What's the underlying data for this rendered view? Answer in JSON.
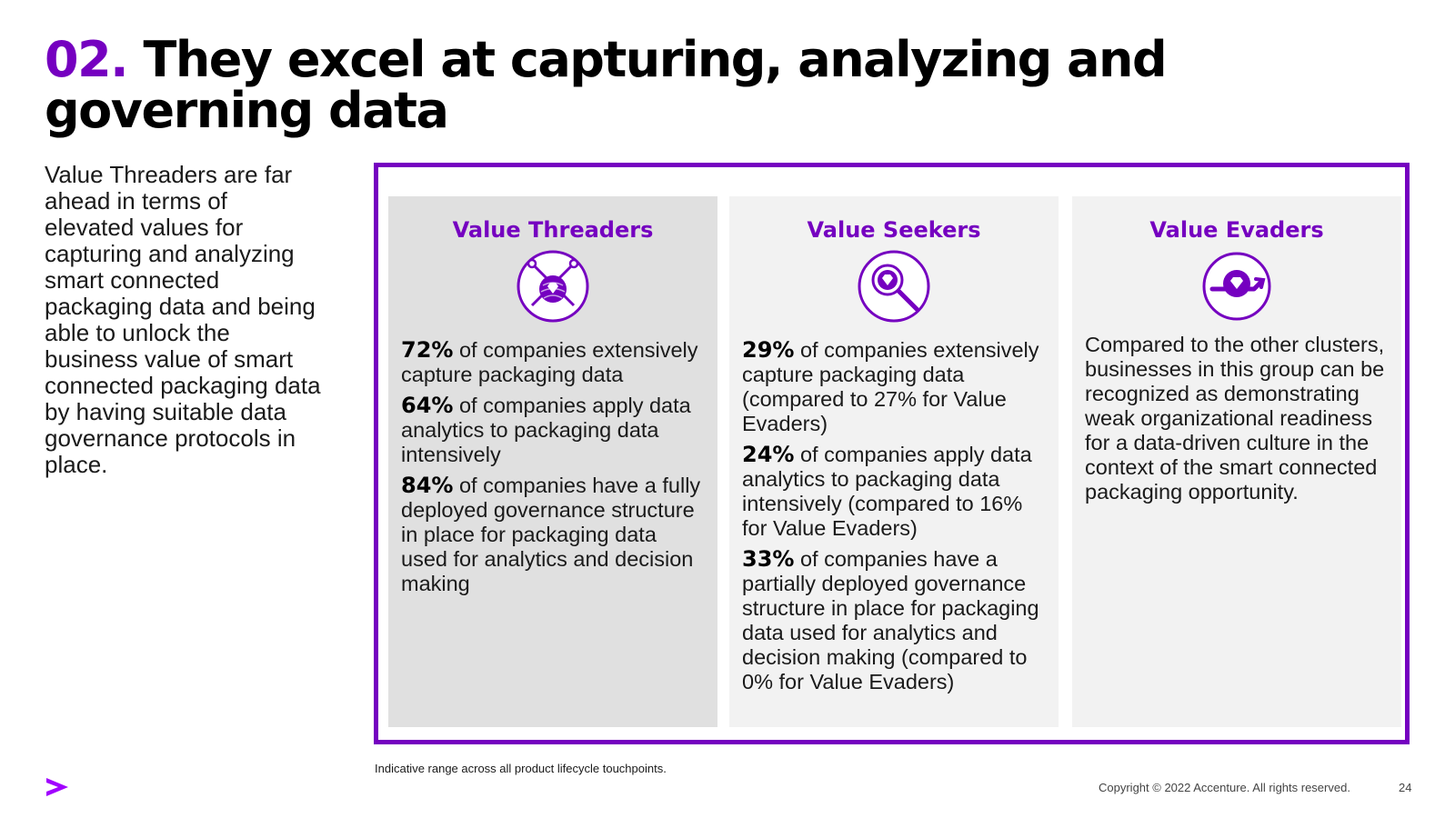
{
  "header": {
    "number": "02.",
    "title": "They excel at capturing, analyzing and governing data"
  },
  "intro_text": "Value Threaders are far ahead in terms of elevated values for capturing and analyzing smart connected packaging data and being able to unlock the business value of smart connected packaging data by having suitable data governance protocols in place.",
  "columns": {
    "threaders": {
      "title": "Value Threaders",
      "icon": "yarn-ball-diamond-icon",
      "stats": [
        {
          "pct": "72%",
          "text": " of companies extensively capture packaging data"
        },
        {
          "pct": "64%",
          "text": " of companies apply data analytics to packaging data intensively"
        },
        {
          "pct": "84%",
          "text": " of companies have a fully deployed governance structure in place for packaging data used for analytics and decision making"
        }
      ]
    },
    "seekers": {
      "title": "Value Seekers",
      "icon": "magnifier-diamond-icon",
      "stats": [
        {
          "pct": "29%",
          "text": " of companies extensively capture packaging data (compared to 27% for Value Evaders)"
        },
        {
          "pct": "24%",
          "text": " of companies apply data analytics to packaging data intensively (compared to 16% for Value Evaders)"
        },
        {
          "pct": "33%",
          "text": " of companies have a partially deployed governance structure in place for packaging data used for analytics and decision making (compared to 0% for Value Evaders)"
        }
      ]
    },
    "evaders": {
      "title": "Value Evaders",
      "icon": "diamond-arrow-icon",
      "text": "Compared to the other clusters, businesses in this group can be recognized as demonstrating weak organizational readiness for a data-driven culture in the context of the smart connected packaging opportunity."
    }
  },
  "footnote": "Indicative range across all product lifecycle touchpoints.",
  "footer": {
    "copyright": "Copyright © 2022 Accenture. All rights reserved.",
    "page_number": "24",
    "logo_icon": "accenture-chevron-icon"
  },
  "colors": {
    "accent": "#7500c0",
    "panel_dark": "#e0e0e0",
    "panel_light": "#f2f2f2"
  }
}
